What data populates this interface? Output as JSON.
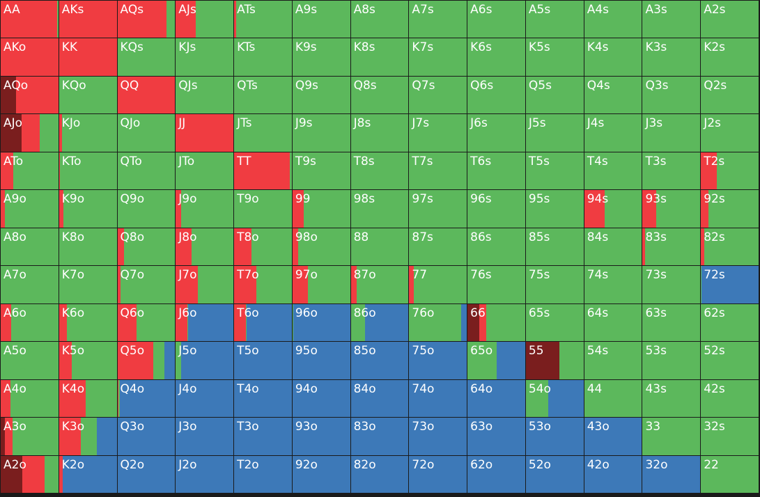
{
  "colors": {
    "allin": "#7a1e1e",
    "raise": "#f03c41",
    "call": "#5cb85c",
    "fold": "#3d79b8"
  },
  "ranks": [
    "A",
    "K",
    "Q",
    "J",
    "T",
    "9",
    "8",
    "7",
    "6",
    "5",
    "4",
    "3",
    "2"
  ],
  "cells": [
    [
      {
        "h": "AA",
        "s": [
          0,
          0.98,
          0.02,
          0
        ]
      },
      {
        "h": "AKs",
        "s": [
          0,
          1,
          0,
          0
        ]
      },
      {
        "h": "AQs",
        "s": [
          0,
          0.85,
          0.15,
          0
        ]
      },
      {
        "h": "AJs",
        "s": [
          0,
          0.35,
          0.65,
          0
        ]
      },
      {
        "h": "ATs",
        "s": [
          0,
          0.03,
          0.97,
          0
        ]
      },
      {
        "h": "A9s",
        "s": [
          0,
          0,
          1,
          0
        ]
      },
      {
        "h": "A8s",
        "s": [
          0,
          0,
          1,
          0
        ]
      },
      {
        "h": "A7s",
        "s": [
          0,
          0,
          1,
          0
        ]
      },
      {
        "h": "A6s",
        "s": [
          0,
          0,
          1,
          0
        ]
      },
      {
        "h": "A5s",
        "s": [
          0,
          0,
          1,
          0
        ]
      },
      {
        "h": "A4s",
        "s": [
          0,
          0,
          1,
          0
        ]
      },
      {
        "h": "A3s",
        "s": [
          0,
          0,
          1,
          0
        ]
      },
      {
        "h": "A2s",
        "s": [
          0,
          0,
          1,
          0
        ]
      }
    ],
    [
      {
        "h": "AKo",
        "s": [
          0,
          1,
          0,
          0
        ]
      },
      {
        "h": "KK",
        "s": [
          0,
          1,
          0,
          0
        ]
      },
      {
        "h": "KQs",
        "s": [
          0,
          0,
          1,
          0
        ]
      },
      {
        "h": "KJs",
        "s": [
          0,
          0,
          1,
          0
        ]
      },
      {
        "h": "KTs",
        "s": [
          0,
          0,
          1,
          0
        ]
      },
      {
        "h": "K9s",
        "s": [
          0,
          0,
          1,
          0
        ]
      },
      {
        "h": "K8s",
        "s": [
          0,
          0,
          1,
          0
        ]
      },
      {
        "h": "K7s",
        "s": [
          0,
          0,
          1,
          0
        ]
      },
      {
        "h": "K6s",
        "s": [
          0,
          0,
          1,
          0
        ]
      },
      {
        "h": "K5s",
        "s": [
          0,
          0,
          1,
          0
        ]
      },
      {
        "h": "K4s",
        "s": [
          0,
          0,
          1,
          0
        ]
      },
      {
        "h": "K3s",
        "s": [
          0,
          0,
          1,
          0
        ]
      },
      {
        "h": "K2s",
        "s": [
          0,
          0,
          1,
          0
        ]
      }
    ],
    [
      {
        "h": "AQo",
        "s": [
          0.27,
          0.73,
          0,
          0
        ]
      },
      {
        "h": "KQo",
        "s": [
          0,
          0,
          1,
          0
        ]
      },
      {
        "h": "QQ",
        "s": [
          0,
          1,
          0,
          0
        ]
      },
      {
        "h": "QJs",
        "s": [
          0,
          0,
          1,
          0
        ]
      },
      {
        "h": "QTs",
        "s": [
          0,
          0,
          1,
          0
        ]
      },
      {
        "h": "Q9s",
        "s": [
          0,
          0,
          1,
          0
        ]
      },
      {
        "h": "Q8s",
        "s": [
          0,
          0,
          1,
          0
        ]
      },
      {
        "h": "Q7s",
        "s": [
          0,
          0,
          1,
          0
        ]
      },
      {
        "h": "Q6s",
        "s": [
          0,
          0,
          1,
          0
        ]
      },
      {
        "h": "Q5s",
        "s": [
          0,
          0,
          1,
          0
        ]
      },
      {
        "h": "Q4s",
        "s": [
          0,
          0,
          1,
          0
        ]
      },
      {
        "h": "Q3s",
        "s": [
          0,
          0,
          1,
          0
        ]
      },
      {
        "h": "Q2s",
        "s": [
          0,
          0,
          1,
          0
        ]
      }
    ],
    [
      {
        "h": "AJo",
        "s": [
          0.36,
          0.32,
          0.32,
          0
        ]
      },
      {
        "h": "KJo",
        "s": [
          0,
          0.05,
          0.95,
          0
        ]
      },
      {
        "h": "QJo",
        "s": [
          0,
          0,
          1,
          0
        ]
      },
      {
        "h": "JJ",
        "s": [
          0,
          1,
          0,
          0
        ]
      },
      {
        "h": "JTs",
        "s": [
          0,
          0,
          1,
          0
        ]
      },
      {
        "h": "J9s",
        "s": [
          0,
          0,
          1,
          0
        ]
      },
      {
        "h": "J8s",
        "s": [
          0,
          0,
          1,
          0
        ]
      },
      {
        "h": "J7s",
        "s": [
          0,
          0,
          1,
          0
        ]
      },
      {
        "h": "J6s",
        "s": [
          0,
          0,
          1,
          0
        ]
      },
      {
        "h": "J5s",
        "s": [
          0,
          0,
          1,
          0
        ]
      },
      {
        "h": "J4s",
        "s": [
          0,
          0,
          1,
          0
        ]
      },
      {
        "h": "J3s",
        "s": [
          0,
          0,
          1,
          0
        ]
      },
      {
        "h": "J2s",
        "s": [
          0,
          0,
          1,
          0
        ]
      }
    ],
    [
      {
        "h": "ATo",
        "s": [
          0,
          0.22,
          0.78,
          0
        ]
      },
      {
        "h": "KTo",
        "s": [
          0,
          0.02,
          0.98,
          0
        ]
      },
      {
        "h": "QTo",
        "s": [
          0,
          0,
          1,
          0
        ]
      },
      {
        "h": "JTo",
        "s": [
          0,
          0,
          1,
          0
        ]
      },
      {
        "h": "TT",
        "s": [
          0,
          0.97,
          0.03,
          0
        ]
      },
      {
        "h": "T9s",
        "s": [
          0,
          0,
          1,
          0
        ]
      },
      {
        "h": "T8s",
        "s": [
          0,
          0,
          1,
          0
        ]
      },
      {
        "h": "T7s",
        "s": [
          0,
          0,
          1,
          0
        ]
      },
      {
        "h": "T6s",
        "s": [
          0,
          0,
          1,
          0
        ]
      },
      {
        "h": "T5s",
        "s": [
          0,
          0,
          1,
          0
        ]
      },
      {
        "h": "T4s",
        "s": [
          0,
          0,
          1,
          0
        ]
      },
      {
        "h": "T3s",
        "s": [
          0,
          0,
          1,
          0
        ]
      },
      {
        "h": "T2s",
        "s": [
          0,
          0.27,
          0.73,
          0
        ]
      }
    ],
    [
      {
        "h": "A9o",
        "s": [
          0,
          0.07,
          0.93,
          0
        ]
      },
      {
        "h": "K9o",
        "s": [
          0,
          0.07,
          0.93,
          0
        ]
      },
      {
        "h": "Q9o",
        "s": [
          0,
          0,
          1,
          0
        ]
      },
      {
        "h": "J9o",
        "s": [
          0,
          0.09,
          0.91,
          0
        ]
      },
      {
        "h": "T9o",
        "s": [
          0,
          0,
          1,
          0
        ]
      },
      {
        "h": "99",
        "s": [
          0,
          0.2,
          0.8,
          0
        ]
      },
      {
        "h": "98s",
        "s": [
          0,
          0,
          1,
          0
        ]
      },
      {
        "h": "97s",
        "s": [
          0,
          0,
          1,
          0
        ]
      },
      {
        "h": "96s",
        "s": [
          0,
          0,
          1,
          0
        ]
      },
      {
        "h": "95s",
        "s": [
          0,
          0,
          1,
          0
        ]
      },
      {
        "h": "94s",
        "s": [
          0,
          0.35,
          0.65,
          0
        ]
      },
      {
        "h": "93s",
        "s": [
          0,
          0.24,
          0.76,
          0
        ]
      },
      {
        "h": "92s",
        "s": [
          0,
          0.13,
          0.87,
          0
        ]
      }
    ],
    [
      {
        "h": "A8o",
        "s": [
          0,
          0,
          1,
          0
        ]
      },
      {
        "h": "K8o",
        "s": [
          0,
          0,
          1,
          0
        ]
      },
      {
        "h": "Q8o",
        "s": [
          0,
          0.12,
          0.88,
          0
        ]
      },
      {
        "h": "J8o",
        "s": [
          0,
          0.28,
          0.72,
          0
        ]
      },
      {
        "h": "T8o",
        "s": [
          0,
          0.3,
          0.7,
          0
        ]
      },
      {
        "h": "98o",
        "s": [
          0,
          0.1,
          0.9,
          0
        ]
      },
      {
        "h": "88",
        "s": [
          0,
          0,
          1,
          0
        ]
      },
      {
        "h": "87s",
        "s": [
          0,
          0,
          1,
          0
        ]
      },
      {
        "h": "86s",
        "s": [
          0,
          0,
          1,
          0
        ]
      },
      {
        "h": "85s",
        "s": [
          0,
          0,
          1,
          0
        ]
      },
      {
        "h": "84s",
        "s": [
          0,
          0,
          1,
          0
        ]
      },
      {
        "h": "83s",
        "s": [
          0,
          0.04,
          0.96,
          0
        ]
      },
      {
        "h": "82s",
        "s": [
          0,
          0.06,
          0.94,
          0
        ]
      }
    ],
    [
      {
        "h": "A7o",
        "s": [
          0,
          0,
          1,
          0
        ]
      },
      {
        "h": "K7o",
        "s": [
          0,
          0,
          1,
          0
        ]
      },
      {
        "h": "Q7o",
        "s": [
          0,
          0.05,
          0.95,
          0
        ]
      },
      {
        "h": "J7o",
        "s": [
          0,
          0.38,
          0.62,
          0
        ]
      },
      {
        "h": "T7o",
        "s": [
          0,
          0.38,
          0.62,
          0
        ]
      },
      {
        "h": "97o",
        "s": [
          0,
          0.27,
          0.73,
          0
        ]
      },
      {
        "h": "87o",
        "s": [
          0,
          0.1,
          0.9,
          0
        ]
      },
      {
        "h": "77",
        "s": [
          0,
          0.08,
          0.92,
          0
        ]
      },
      {
        "h": "76s",
        "s": [
          0,
          0,
          1,
          0
        ]
      },
      {
        "h": "75s",
        "s": [
          0,
          0,
          1,
          0
        ]
      },
      {
        "h": "74s",
        "s": [
          0,
          0,
          1,
          0
        ]
      },
      {
        "h": "73s",
        "s": [
          0,
          0,
          1,
          0
        ]
      },
      {
        "h": "72s",
        "s": [
          0,
          0,
          0.01,
          0.99
        ]
      }
    ],
    [
      {
        "h": "A6o",
        "s": [
          0,
          0.18,
          0.82,
          0
        ]
      },
      {
        "h": "K6o",
        "s": [
          0,
          0.14,
          0.86,
          0
        ]
      },
      {
        "h": "Q6o",
        "s": [
          0,
          0.33,
          0.67,
          0
        ]
      },
      {
        "h": "J6o",
        "s": [
          0,
          0.2,
          0.02,
          0.78
        ]
      },
      {
        "h": "T6o",
        "s": [
          0,
          0.2,
          0.02,
          0.78
        ]
      },
      {
        "h": "96o",
        "s": [
          0,
          0,
          0.01,
          0.99
        ]
      },
      {
        "h": "86o",
        "s": [
          0,
          0,
          0.25,
          0.75
        ]
      },
      {
        "h": "76o",
        "s": [
          0,
          0,
          0.9,
          0.1
        ]
      },
      {
        "h": "66",
        "s": [
          0.2,
          0.13,
          0.67,
          0
        ]
      },
      {
        "h": "65s",
        "s": [
          0,
          0,
          1,
          0
        ]
      },
      {
        "h": "64s",
        "s": [
          0,
          0,
          1,
          0
        ]
      },
      {
        "h": "63s",
        "s": [
          0,
          0,
          1,
          0
        ]
      },
      {
        "h": "62s",
        "s": [
          0,
          0,
          1,
          0
        ]
      }
    ],
    [
      {
        "h": "A5o",
        "s": [
          0,
          0,
          1,
          0
        ]
      },
      {
        "h": "K5o",
        "s": [
          0,
          0.22,
          0.78,
          0
        ]
      },
      {
        "h": "Q5o",
        "s": [
          0,
          0.62,
          0.2,
          0.18
        ]
      },
      {
        "h": "J5o",
        "s": [
          0,
          0,
          0.09,
          0.91
        ]
      },
      {
        "h": "T5o",
        "s": [
          0,
          0,
          0,
          1
        ]
      },
      {
        "h": "95o",
        "s": [
          0,
          0,
          0,
          1
        ]
      },
      {
        "h": "85o",
        "s": [
          0,
          0,
          0,
          1
        ]
      },
      {
        "h": "75o",
        "s": [
          0,
          0,
          0,
          1
        ]
      },
      {
        "h": "65o",
        "s": [
          0,
          0,
          0.5,
          0.5
        ]
      },
      {
        "h": "55",
        "s": [
          0.58,
          0,
          0.42,
          0
        ]
      },
      {
        "h": "54s",
        "s": [
          0,
          0,
          1,
          0
        ]
      },
      {
        "h": "53s",
        "s": [
          0,
          0,
          1,
          0
        ]
      },
      {
        "h": "52s",
        "s": [
          0,
          0,
          1,
          0
        ]
      }
    ],
    [
      {
        "h": "A4o",
        "s": [
          0,
          0.17,
          0.83,
          0
        ]
      },
      {
        "h": "K4o",
        "s": [
          0,
          0.46,
          0.54,
          0
        ]
      },
      {
        "h": "Q4o",
        "s": [
          0,
          0.02,
          0.02,
          0.96
        ]
      },
      {
        "h": "J4o",
        "s": [
          0,
          0,
          0,
          1
        ]
      },
      {
        "h": "T4o",
        "s": [
          0,
          0,
          0,
          1
        ]
      },
      {
        "h": "94o",
        "s": [
          0,
          0,
          0,
          1
        ]
      },
      {
        "h": "84o",
        "s": [
          0,
          0,
          0,
          1
        ]
      },
      {
        "h": "74o",
        "s": [
          0,
          0,
          0,
          1
        ]
      },
      {
        "h": "64o",
        "s": [
          0,
          0,
          0,
          1
        ]
      },
      {
        "h": "54o",
        "s": [
          0,
          0,
          0.39,
          0.61
        ]
      },
      {
        "h": "44",
        "s": [
          0,
          0,
          1,
          0
        ]
      },
      {
        "h": "43s",
        "s": [
          0,
          0,
          1,
          0
        ]
      },
      {
        "h": "42s",
        "s": [
          0,
          0,
          1,
          0
        ]
      }
    ],
    [
      {
        "h": "A3o",
        "s": [
          0.07,
          0.14,
          0.79,
          0
        ]
      },
      {
        "h": "K3o",
        "s": [
          0,
          0.38,
          0.27,
          0.35
        ]
      },
      {
        "h": "Q3o",
        "s": [
          0,
          0,
          0,
          1
        ]
      },
      {
        "h": "J3o",
        "s": [
          0,
          0,
          0,
          1
        ]
      },
      {
        "h": "T3o",
        "s": [
          0,
          0,
          0,
          1
        ]
      },
      {
        "h": "93o",
        "s": [
          0,
          0,
          0,
          1
        ]
      },
      {
        "h": "83o",
        "s": [
          0,
          0,
          0,
          1
        ]
      },
      {
        "h": "73o",
        "s": [
          0,
          0,
          0,
          1
        ]
      },
      {
        "h": "63o",
        "s": [
          0,
          0,
          0,
          1
        ]
      },
      {
        "h": "53o",
        "s": [
          0,
          0,
          0,
          1
        ]
      },
      {
        "h": "43o",
        "s": [
          0,
          0,
          0,
          1
        ]
      },
      {
        "h": "33",
        "s": [
          0,
          0,
          1,
          0
        ]
      },
      {
        "h": "32s",
        "s": [
          0,
          0,
          1,
          0
        ]
      }
    ],
    [
      {
        "h": "A2o",
        "s": [
          0.38,
          0.38,
          0.24,
          0
        ]
      },
      {
        "h": "K2o",
        "s": [
          0,
          0.06,
          0,
          0.94
        ]
      },
      {
        "h": "Q2o",
        "s": [
          0,
          0,
          0,
          1
        ]
      },
      {
        "h": "J2o",
        "s": [
          0,
          0,
          0,
          1
        ]
      },
      {
        "h": "T2o",
        "s": [
          0,
          0,
          0,
          1
        ]
      },
      {
        "h": "92o",
        "s": [
          0,
          0,
          0,
          1
        ]
      },
      {
        "h": "82o",
        "s": [
          0,
          0,
          0,
          1
        ]
      },
      {
        "h": "72o",
        "s": [
          0,
          0,
          0,
          1
        ]
      },
      {
        "h": "62o",
        "s": [
          0,
          0,
          0,
          1
        ]
      },
      {
        "h": "52o",
        "s": [
          0,
          0,
          0,
          1
        ]
      },
      {
        "h": "42o",
        "s": [
          0,
          0,
          0,
          1
        ]
      },
      {
        "h": "32o",
        "s": [
          0,
          0,
          0,
          1
        ]
      },
      {
        "h": "22",
        "s": [
          0,
          0,
          1,
          0
        ]
      }
    ]
  ]
}
